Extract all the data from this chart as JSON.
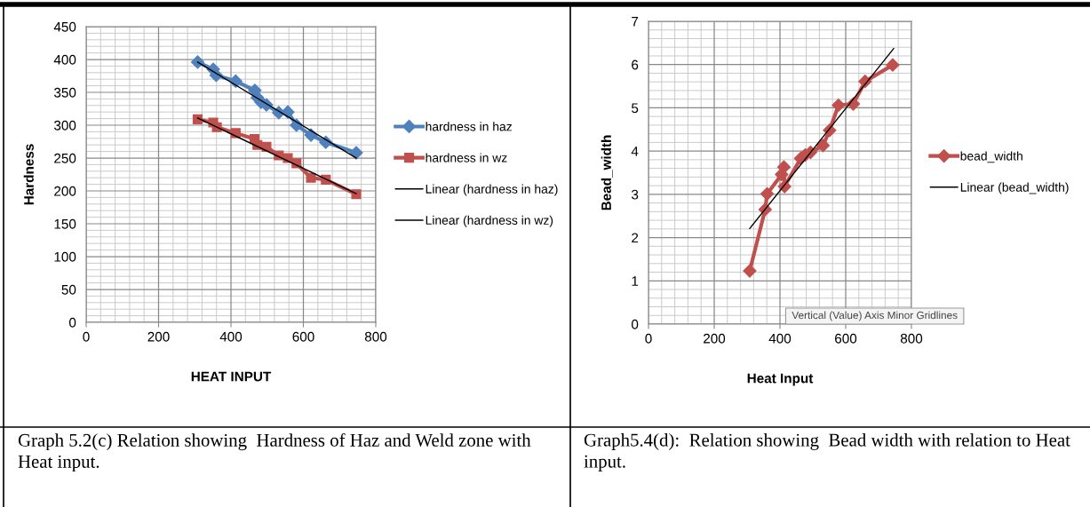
{
  "chart_data": [
    {
      "type": "line",
      "xlabel": "HEAT INPUT",
      "ylabel": "Hardness",
      "xlim": [
        0,
        800
      ],
      "xticks": [
        0,
        200,
        400,
        600,
        800
      ],
      "ylim": [
        0,
        450
      ],
      "yticks": [
        0,
        50,
        100,
        150,
        200,
        250,
        300,
        350,
        400,
        450
      ],
      "grid": true,
      "legend": "right",
      "series": [
        {
          "name": "hardness in haz",
          "color": "#4f81bd",
          "marker": "diamond",
          "x": [
            308,
            351,
            359,
            413,
            466,
            473,
            483,
            498,
            532,
            557,
            581,
            621,
            662,
            746
          ],
          "values": [
            396,
            385,
            376,
            367,
            353,
            342,
            335,
            331,
            319,
            320,
            300,
            285,
            274,
            258
          ]
        },
        {
          "name": "hardness in wz",
          "color": "#c0504d",
          "marker": "square",
          "x": [
            308,
            351,
            361,
            413,
            465,
            473,
            498,
            532,
            557,
            581,
            621,
            662,
            746
          ],
          "values": [
            309,
            304,
            297,
            288,
            279,
            270,
            267,
            254,
            250,
            242,
            220,
            217,
            195
          ]
        },
        {
          "name": "Linear (hardness in haz)",
          "color": "#000000",
          "marker": "none",
          "x": [
            308,
            746
          ],
          "values": [
            396,
            250
          ]
        },
        {
          "name": "Linear (hardness in wz)",
          "color": "#000000",
          "marker": "none",
          "x": [
            308,
            746
          ],
          "values": [
            311,
            196
          ]
        }
      ],
      "annotations": [
        "Graph 5.2(c) Relation showing  Hardness of Haz and Weld zone with Heat input."
      ]
    },
    {
      "type": "line",
      "xlabel": "Heat Input",
      "ylabel": "Bead_width",
      "xlim": [
        0,
        800
      ],
      "xticks": [
        0,
        200,
        400,
        600,
        800
      ],
      "ylim": [
        0,
        7
      ],
      "yticks": [
        0,
        1,
        2,
        3,
        4,
        5,
        6,
        7
      ],
      "grid": true,
      "legend": "right",
      "series": [
        {
          "name": "bead_width",
          "color": "#c0504d",
          "marker": "diamond",
          "x": [
            308,
            355,
            361,
            405,
            412,
            414,
            463,
            477,
            493,
            531,
            551,
            578,
            623,
            659,
            743
          ],
          "values": [
            1.23,
            2.65,
            3.01,
            3.46,
            3.63,
            3.18,
            3.83,
            3.91,
            3.97,
            4.13,
            4.48,
            5.06,
            5.09,
            5.61,
            5.99
          ]
        },
        {
          "name": "Linear (bead_width)",
          "color": "#000000",
          "marker": "none",
          "x": [
            308,
            746
          ],
          "values": [
            2.21,
            6.37
          ]
        }
      ],
      "annotations": [
        "Vertical (Value) Axis Minor Gridlines",
        "Graph5.4(d):  Relation showing  Bead width with relation to Heat input."
      ]
    }
  ]
}
